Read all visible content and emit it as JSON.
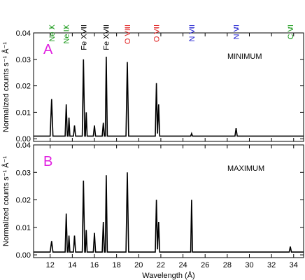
{
  "chart_data": [
    {
      "type": "line",
      "panel_label": "A",
      "state_label": "MINIMUM",
      "ylabel": "Normalized counts s⁻¹ Å⁻¹",
      "xlim": [
        10.5,
        34.9
      ],
      "ylim": [
        -0.001,
        0.04
      ],
      "xticks": [
        12,
        14,
        16,
        18,
        20,
        22,
        24,
        26,
        28,
        30,
        32,
        34
      ],
      "yticks": [
        {
          "value": 0,
          "label": "0.00"
        },
        {
          "value": 0.01,
          "label": "0.01"
        },
        {
          "value": 0.02,
          "label": "0.02"
        },
        {
          "value": 0.03,
          "label": "0.03"
        },
        {
          "value": 0.04,
          "label": "0.04"
        }
      ],
      "annotations": [
        {
          "text": "Ne X",
          "x": 12.13,
          "color": "#1a9a1a"
        },
        {
          "text": "Ne IX",
          "x": 13.45,
          "color": "#1a9a1a"
        },
        {
          "text": "Fe XVII",
          "x": 15.01,
          "color": "#000000"
        },
        {
          "text": "Fe XVII",
          "x": 17.05,
          "color": "#000000"
        },
        {
          "text": "O VIII",
          "x": 18.97,
          "color": "#e02020"
        },
        {
          "text": "O VII",
          "x": 21.6,
          "color": "#e02020"
        },
        {
          "text": "N VII",
          "x": 24.78,
          "color": "#2020d0"
        },
        {
          "text": "N VI",
          "x": 28.8,
          "color": "#2020d0"
        },
        {
          "text": "C VI",
          "x": 33.7,
          "color": "#1a9a1a"
        }
      ],
      "x": [
        10.5,
        12.0,
        12.13,
        12.25,
        13.35,
        13.45,
        13.55,
        13.62,
        13.7,
        13.78,
        14.1,
        14.2,
        14.3,
        14.9,
        15.01,
        15.12,
        15.18,
        15.26,
        15.34,
        15.9,
        16.0,
        16.1,
        16.7,
        16.8,
        16.9,
        16.98,
        17.07,
        17.16,
        18.85,
        18.97,
        19.09,
        21.5,
        21.6,
        21.7,
        21.8,
        21.9,
        24.7,
        24.78,
        24.86,
        28.7,
        28.8,
        28.9,
        33.6,
        33.7,
        33.8,
        34.9
      ],
      "series": [
        {
          "color": "#000000",
          "values": [
            0.001,
            0.001,
            0.015,
            0.001,
            0.001,
            0.013,
            0.001,
            0.001,
            0.008,
            0.001,
            0.001,
            0.005,
            0.001,
            0.001,
            0.03,
            0.001,
            0.001,
            0.01,
            0.001,
            0.001,
            0.005,
            0.001,
            0.001,
            0.006,
            0.001,
            0.001,
            0.031,
            0.001,
            0.001,
            0.029,
            0.001,
            0.001,
            0.021,
            0.002,
            0.013,
            0.001,
            0.001,
            0.002,
            0.001,
            0.001,
            0.004,
            0.001,
            0.001,
            0.001,
            0.001,
            0.001
          ]
        }
      ]
    },
    {
      "type": "line",
      "panel_label": "B",
      "state_label": "MAXIMUM",
      "ylabel": "Normalized counts s⁻¹ Å⁻¹",
      "xlabel": "Wavelength (Å)",
      "xlim": [
        10.5,
        34.9
      ],
      "ylim": [
        -0.001,
        0.04
      ],
      "xticks": [
        12,
        14,
        16,
        18,
        20,
        22,
        24,
        26,
        28,
        30,
        32,
        34
      ],
      "yticks": [
        {
          "value": 0,
          "label": "0.00"
        },
        {
          "value": 0.01,
          "label": "0.01"
        },
        {
          "value": 0.02,
          "label": "0.02"
        },
        {
          "value": 0.03,
          "label": "0.03"
        },
        {
          "value": 0.04,
          "label": "0.04"
        }
      ],
      "x": [
        10.5,
        12.0,
        12.13,
        12.25,
        13.35,
        13.45,
        13.55,
        13.62,
        13.7,
        13.78,
        14.1,
        14.2,
        14.3,
        14.9,
        15.01,
        15.12,
        15.18,
        15.26,
        15.34,
        15.9,
        16.0,
        16.1,
        16.7,
        16.8,
        16.9,
        16.98,
        17.07,
        17.16,
        18.85,
        18.97,
        19.09,
        21.5,
        21.6,
        21.7,
        21.8,
        21.9,
        24.7,
        24.78,
        24.86,
        28.7,
        28.8,
        28.9,
        33.6,
        33.7,
        33.8,
        34.9
      ],
      "series": [
        {
          "color": "#000000",
          "values": [
            0.001,
            0.001,
            0.005,
            0.001,
            0.001,
            0.015,
            0.001,
            0.001,
            0.007,
            0.001,
            0.001,
            0.007,
            0.001,
            0.001,
            0.027,
            0.001,
            0.001,
            0.009,
            0.001,
            0.001,
            0.008,
            0.001,
            0.001,
            0.012,
            0.001,
            0.001,
            0.029,
            0.001,
            0.001,
            0.03,
            0.001,
            0.001,
            0.02,
            0.002,
            0.012,
            0.001,
            0.001,
            0.02,
            0.001,
            0.001,
            0.001,
            0.001,
            0.001,
            0.003,
            0.001,
            0.001
          ]
        }
      ]
    }
  ]
}
